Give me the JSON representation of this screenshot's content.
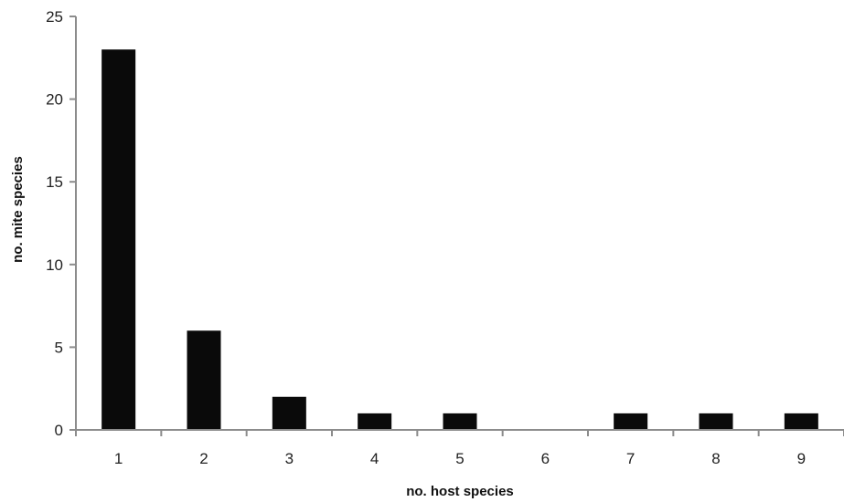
{
  "chart_data": {
    "type": "bar",
    "categories": [
      "1",
      "2",
      "3",
      "4",
      "5",
      "6",
      "7",
      "8",
      "9"
    ],
    "values": [
      23,
      6,
      2,
      1,
      1,
      0,
      1,
      1,
      1
    ],
    "title": "",
    "xlabel": "no. host species",
    "ylabel": "no. mite species",
    "ylim": [
      0,
      25
    ],
    "yticks": [
      "0",
      "5",
      "10",
      "15",
      "20",
      "25"
    ],
    "grid": false,
    "legend": "none",
    "bar_color": "#0a0a0a",
    "axis_color": "#8c8c8c"
  }
}
